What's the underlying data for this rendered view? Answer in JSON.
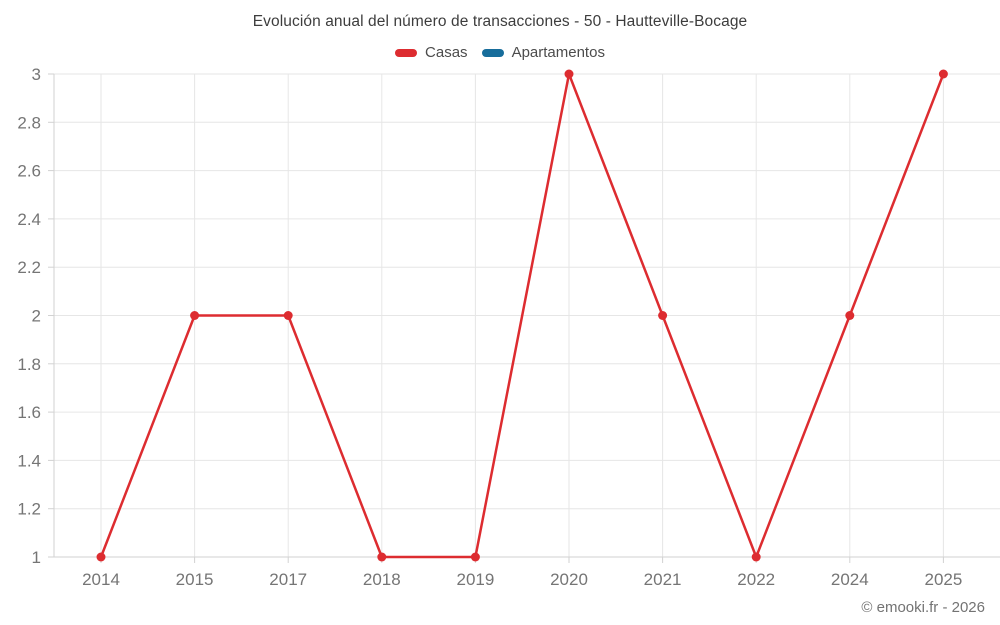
{
  "title": "Evolución anual del número de transacciones - 50 - Hautteville-Bocage",
  "legend": [
    {
      "label": "Casas",
      "color": "#dd2c30"
    },
    {
      "label": "Apartamentos",
      "color": "#176d9b"
    }
  ],
  "footer": {
    "copyright": "© emooki.fr - 2026"
  },
  "colors": {
    "grid": "#e6e6e6",
    "axis": "#d2d2d2",
    "tick_label": "#757575",
    "title": "#3d3d3d",
    "legend_text": "#4c4c4c",
    "copyright": "#737373",
    "casas": "#dd2c30",
    "apartamentos": "#176d9b",
    "background": "#ffffff"
  },
  "chart_data": {
    "type": "line",
    "title": "Evolución anual del número de transacciones - 50 - Hautteville-Bocage",
    "categories": [
      "2014",
      "2015",
      "2017",
      "2018",
      "2019",
      "2020",
      "2021",
      "2022",
      "2024",
      "2025"
    ],
    "series": [
      {
        "name": "Casas",
        "color": "#dd2c30",
        "values": [
          1,
          2,
          2,
          1,
          1,
          3,
          2,
          1,
          2,
          3
        ]
      },
      {
        "name": "Apartamentos",
        "color": "#176d9b",
        "values": []
      }
    ],
    "xlabel": "",
    "ylabel": "",
    "ylim": [
      1,
      3
    ],
    "yticks": [
      1,
      1.2,
      1.4,
      1.6,
      1.8,
      2,
      2.2,
      2.4,
      2.6,
      2.8,
      3
    ],
    "grid": true,
    "legend_position": "top",
    "marker_radius": 4.5,
    "line_width": 2.5
  }
}
